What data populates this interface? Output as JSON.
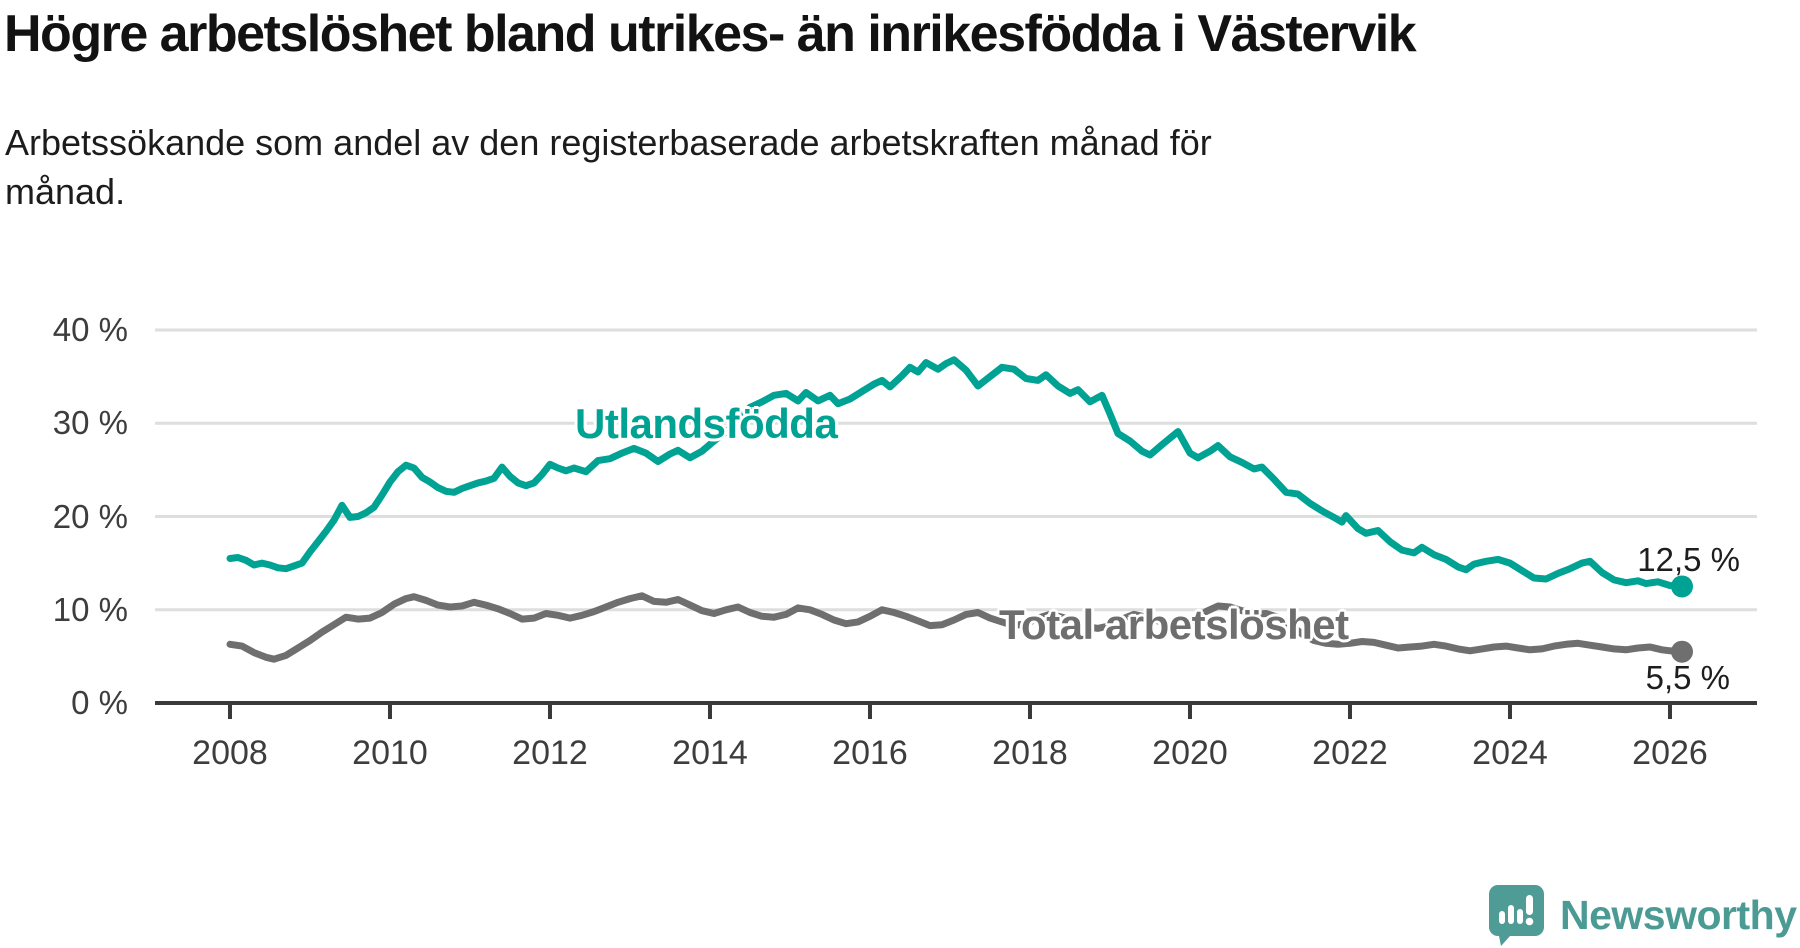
{
  "title": "Högre arbetslöshet bland utrikes- än inrikesfödda i Västervik",
  "subtitle": "Arbetssökande som andel av den registerbaserade arbetskraften månad för månad.",
  "branding": {
    "logo_text": "Newsworthy",
    "logo_icon": "bar-chart-speech-bubble-icon",
    "logo_color": "#4E9C95"
  },
  "colors": {
    "foreign_born_line": "#00A293",
    "total_line": "#6F6F6F",
    "gridline": "#DEDEDE",
    "axis": "#3A3A3A",
    "text": "#3D3D3D"
  },
  "chart_data": {
    "type": "line",
    "title": "Högre arbetslöshet bland utrikes- än inrikesfödda i Västervik",
    "xlabel": "",
    "ylabel": "",
    "unit": "%",
    "grid": "horizontal",
    "legend_position": "inline-labels",
    "x_axis": {
      "range": [
        2007.1,
        2027.1
      ],
      "ticks": [
        2008,
        2010,
        2012,
        2014,
        2016,
        2018,
        2020,
        2022,
        2024,
        2026
      ],
      "tick_labels": [
        "2008",
        "2010",
        "2012",
        "2014",
        "2016",
        "2018",
        "2020",
        "2022",
        "2024",
        "2026"
      ]
    },
    "y_axis": {
      "range": [
        0,
        42
      ],
      "ticks": [
        40,
        30,
        20,
        10,
        0
      ],
      "tick_labels": [
        "40 %",
        "30 %",
        "20 %",
        "10 %",
        "0 %"
      ]
    },
    "series": [
      {
        "name": "Utlandsfödda",
        "color": "#00A293",
        "end_label": "12,5 %",
        "end_value": 12.5,
        "end_dot": true,
        "points": [
          [
            2008.0,
            15.5
          ],
          [
            2008.1,
            15.6
          ],
          [
            2008.2,
            15.3
          ],
          [
            2008.3,
            14.8
          ],
          [
            2008.4,
            15.0
          ],
          [
            2008.5,
            14.8
          ],
          [
            2008.6,
            14.5
          ],
          [
            2008.7,
            14.4
          ],
          [
            2008.8,
            14.7
          ],
          [
            2008.9,
            15.0
          ],
          [
            2009.0,
            16.2
          ],
          [
            2009.1,
            17.3
          ],
          [
            2009.2,
            18.4
          ],
          [
            2009.3,
            19.6
          ],
          [
            2009.4,
            21.2
          ],
          [
            2009.5,
            19.9
          ],
          [
            2009.6,
            20.0
          ],
          [
            2009.7,
            20.4
          ],
          [
            2009.8,
            21.0
          ],
          [
            2009.9,
            22.3
          ],
          [
            2010.0,
            23.7
          ],
          [
            2010.1,
            24.8
          ],
          [
            2010.2,
            25.5
          ],
          [
            2010.3,
            25.2
          ],
          [
            2010.4,
            24.2
          ],
          [
            2010.5,
            23.7
          ],
          [
            2010.6,
            23.1
          ],
          [
            2010.7,
            22.7
          ],
          [
            2010.8,
            22.6
          ],
          [
            2010.9,
            23.0
          ],
          [
            2011.0,
            23.3
          ],
          [
            2011.1,
            23.6
          ],
          [
            2011.2,
            23.8
          ],
          [
            2011.3,
            24.1
          ],
          [
            2011.4,
            25.3
          ],
          [
            2011.5,
            24.3
          ],
          [
            2011.6,
            23.6
          ],
          [
            2011.7,
            23.3
          ],
          [
            2011.8,
            23.6
          ],
          [
            2011.9,
            24.5
          ],
          [
            2012.0,
            25.6
          ],
          [
            2012.1,
            25.2
          ],
          [
            2012.2,
            24.9
          ],
          [
            2012.3,
            25.2
          ],
          [
            2012.45,
            24.8
          ],
          [
            2012.6,
            26.0
          ],
          [
            2012.75,
            26.2
          ],
          [
            2012.9,
            26.8
          ],
          [
            2013.05,
            27.3
          ],
          [
            2013.2,
            26.8
          ],
          [
            2013.35,
            25.9
          ],
          [
            2013.5,
            26.7
          ],
          [
            2013.6,
            27.1
          ],
          [
            2013.75,
            26.3
          ],
          [
            2013.9,
            27.0
          ],
          [
            2014.05,
            28.1
          ],
          [
            2014.2,
            29.1
          ],
          [
            2014.35,
            30.2
          ],
          [
            2014.5,
            31.7
          ],
          [
            2014.65,
            32.3
          ],
          [
            2014.8,
            33.0
          ],
          [
            2014.95,
            33.2
          ],
          [
            2015.1,
            32.4
          ],
          [
            2015.2,
            33.3
          ],
          [
            2015.35,
            32.4
          ],
          [
            2015.5,
            33.0
          ],
          [
            2015.6,
            32.1
          ],
          [
            2015.75,
            32.6
          ],
          [
            2015.9,
            33.4
          ],
          [
            2016.05,
            34.2
          ],
          [
            2016.15,
            34.6
          ],
          [
            2016.25,
            33.9
          ],
          [
            2016.4,
            35.1
          ],
          [
            2016.5,
            36.0
          ],
          [
            2016.6,
            35.5
          ],
          [
            2016.7,
            36.5
          ],
          [
            2016.85,
            35.8
          ],
          [
            2016.95,
            36.4
          ],
          [
            2017.05,
            36.8
          ],
          [
            2017.2,
            35.7
          ],
          [
            2017.35,
            34.0
          ],
          [
            2017.5,
            35.0
          ],
          [
            2017.65,
            36.0
          ],
          [
            2017.8,
            35.8
          ],
          [
            2017.95,
            34.8
          ],
          [
            2018.1,
            34.6
          ],
          [
            2018.2,
            35.2
          ],
          [
            2018.35,
            34.0
          ],
          [
            2018.5,
            33.2
          ],
          [
            2018.6,
            33.6
          ],
          [
            2018.75,
            32.3
          ],
          [
            2018.9,
            33.0
          ],
          [
            2019.0,
            31.0
          ],
          [
            2019.1,
            28.9
          ],
          [
            2019.25,
            28.1
          ],
          [
            2019.4,
            27.0
          ],
          [
            2019.5,
            26.6
          ],
          [
            2019.65,
            27.7
          ],
          [
            2019.85,
            29.1
          ],
          [
            2020.0,
            26.8
          ],
          [
            2020.1,
            26.3
          ],
          [
            2020.25,
            27.0
          ],
          [
            2020.35,
            27.6
          ],
          [
            2020.5,
            26.4
          ],
          [
            2020.65,
            25.8
          ],
          [
            2020.8,
            25.1
          ],
          [
            2020.9,
            25.3
          ],
          [
            2021.05,
            24.0
          ],
          [
            2021.2,
            22.6
          ],
          [
            2021.35,
            22.4
          ],
          [
            2021.5,
            21.4
          ],
          [
            2021.65,
            20.6
          ],
          [
            2021.8,
            19.9
          ],
          [
            2021.9,
            19.4
          ],
          [
            2021.95,
            20.1
          ],
          [
            2022.1,
            18.7
          ],
          [
            2022.2,
            18.2
          ],
          [
            2022.35,
            18.5
          ],
          [
            2022.5,
            17.3
          ],
          [
            2022.65,
            16.4
          ],
          [
            2022.8,
            16.1
          ],
          [
            2022.9,
            16.7
          ],
          [
            2023.05,
            15.9
          ],
          [
            2023.2,
            15.4
          ],
          [
            2023.35,
            14.6
          ],
          [
            2023.45,
            14.3
          ],
          [
            2023.55,
            14.9
          ],
          [
            2023.7,
            15.2
          ],
          [
            2023.85,
            15.4
          ],
          [
            2024.0,
            15.0
          ],
          [
            2024.15,
            14.2
          ],
          [
            2024.3,
            13.4
          ],
          [
            2024.45,
            13.3
          ],
          [
            2024.6,
            13.9
          ],
          [
            2024.75,
            14.4
          ],
          [
            2024.9,
            15.0
          ],
          [
            2025.0,
            15.2
          ],
          [
            2025.15,
            14.0
          ],
          [
            2025.3,
            13.2
          ],
          [
            2025.45,
            12.9
          ],
          [
            2025.6,
            13.1
          ],
          [
            2025.7,
            12.8
          ],
          [
            2025.85,
            13.0
          ],
          [
            2026.0,
            12.6
          ],
          [
            2026.15,
            12.5
          ]
        ]
      },
      {
        "name": "Total arbetslöshet",
        "color": "#6F6F6F",
        "end_label": "5,5 %",
        "end_value": 5.5,
        "end_dot": true,
        "points": [
          [
            2008.0,
            6.3
          ],
          [
            2008.15,
            6.1
          ],
          [
            2008.3,
            5.4
          ],
          [
            2008.45,
            4.9
          ],
          [
            2008.55,
            4.7
          ],
          [
            2008.7,
            5.1
          ],
          [
            2008.85,
            5.9
          ],
          [
            2009.0,
            6.7
          ],
          [
            2009.15,
            7.6
          ],
          [
            2009.3,
            8.4
          ],
          [
            2009.45,
            9.2
          ],
          [
            2009.6,
            9.0
          ],
          [
            2009.75,
            9.1
          ],
          [
            2009.9,
            9.7
          ],
          [
            2010.05,
            10.6
          ],
          [
            2010.2,
            11.2
          ],
          [
            2010.3,
            11.4
          ],
          [
            2010.45,
            11.0
          ],
          [
            2010.6,
            10.5
          ],
          [
            2010.75,
            10.3
          ],
          [
            2010.9,
            10.4
          ],
          [
            2011.05,
            10.8
          ],
          [
            2011.2,
            10.5
          ],
          [
            2011.35,
            10.1
          ],
          [
            2011.5,
            9.6
          ],
          [
            2011.65,
            9.0
          ],
          [
            2011.8,
            9.1
          ],
          [
            2011.95,
            9.6
          ],
          [
            2012.1,
            9.4
          ],
          [
            2012.25,
            9.1
          ],
          [
            2012.4,
            9.4
          ],
          [
            2012.55,
            9.8
          ],
          [
            2012.7,
            10.3
          ],
          [
            2012.85,
            10.8
          ],
          [
            2013.0,
            11.2
          ],
          [
            2013.15,
            11.5
          ],
          [
            2013.3,
            10.9
          ],
          [
            2013.45,
            10.8
          ],
          [
            2013.6,
            11.1
          ],
          [
            2013.75,
            10.5
          ],
          [
            2013.9,
            9.9
          ],
          [
            2014.05,
            9.6
          ],
          [
            2014.2,
            10.0
          ],
          [
            2014.35,
            10.3
          ],
          [
            2014.5,
            9.7
          ],
          [
            2014.65,
            9.3
          ],
          [
            2014.8,
            9.2
          ],
          [
            2014.95,
            9.5
          ],
          [
            2015.1,
            10.2
          ],
          [
            2015.25,
            10.0
          ],
          [
            2015.4,
            9.5
          ],
          [
            2015.55,
            8.9
          ],
          [
            2015.7,
            8.5
          ],
          [
            2015.85,
            8.7
          ],
          [
            2016.0,
            9.3
          ],
          [
            2016.15,
            10.0
          ],
          [
            2016.3,
            9.7
          ],
          [
            2016.45,
            9.3
          ],
          [
            2016.6,
            8.8
          ],
          [
            2016.75,
            8.3
          ],
          [
            2016.9,
            8.4
          ],
          [
            2017.05,
            8.9
          ],
          [
            2017.2,
            9.5
          ],
          [
            2017.35,
            9.7
          ],
          [
            2017.5,
            9.1
          ],
          [
            2017.65,
            8.7
          ],
          [
            2017.8,
            8.3
          ],
          [
            2017.95,
            8.5
          ],
          [
            2018.1,
            9.1
          ],
          [
            2018.25,
            9.5
          ],
          [
            2018.4,
            9.2
          ],
          [
            2018.55,
            8.8
          ],
          [
            2018.7,
            8.2
          ],
          [
            2018.85,
            8.0
          ],
          [
            2019.0,
            8.3
          ],
          [
            2019.15,
            9.0
          ],
          [
            2019.3,
            9.5
          ],
          [
            2019.45,
            9.2
          ],
          [
            2019.6,
            8.8
          ],
          [
            2019.75,
            8.4
          ],
          [
            2019.9,
            8.5
          ],
          [
            2020.05,
            9.0
          ],
          [
            2020.2,
            9.8
          ],
          [
            2020.35,
            10.4
          ],
          [
            2020.5,
            10.3
          ],
          [
            2020.65,
            9.9
          ],
          [
            2020.8,
            9.5
          ],
          [
            2020.95,
            9.6
          ],
          [
            2021.1,
            9.2
          ],
          [
            2021.25,
            8.4
          ],
          [
            2021.4,
            7.4
          ],
          [
            2021.55,
            6.7
          ],
          [
            2021.7,
            6.4
          ],
          [
            2021.85,
            6.3
          ],
          [
            2022.0,
            6.4
          ],
          [
            2022.15,
            6.6
          ],
          [
            2022.3,
            6.5
          ],
          [
            2022.45,
            6.2
          ],
          [
            2022.6,
            5.9
          ],
          [
            2022.75,
            6.0
          ],
          [
            2022.9,
            6.1
          ],
          [
            2023.05,
            6.3
          ],
          [
            2023.2,
            6.1
          ],
          [
            2023.35,
            5.8
          ],
          [
            2023.5,
            5.6
          ],
          [
            2023.65,
            5.8
          ],
          [
            2023.8,
            6.0
          ],
          [
            2023.95,
            6.1
          ],
          [
            2024.1,
            5.9
          ],
          [
            2024.25,
            5.7
          ],
          [
            2024.4,
            5.8
          ],
          [
            2024.55,
            6.1
          ],
          [
            2024.7,
            6.3
          ],
          [
            2024.85,
            6.4
          ],
          [
            2025.0,
            6.2
          ],
          [
            2025.15,
            6.0
          ],
          [
            2025.3,
            5.8
          ],
          [
            2025.45,
            5.7
          ],
          [
            2025.6,
            5.9
          ],
          [
            2025.75,
            6.0
          ],
          [
            2025.9,
            5.7
          ],
          [
            2026.0,
            5.6
          ],
          [
            2026.15,
            5.5
          ]
        ]
      }
    ]
  }
}
